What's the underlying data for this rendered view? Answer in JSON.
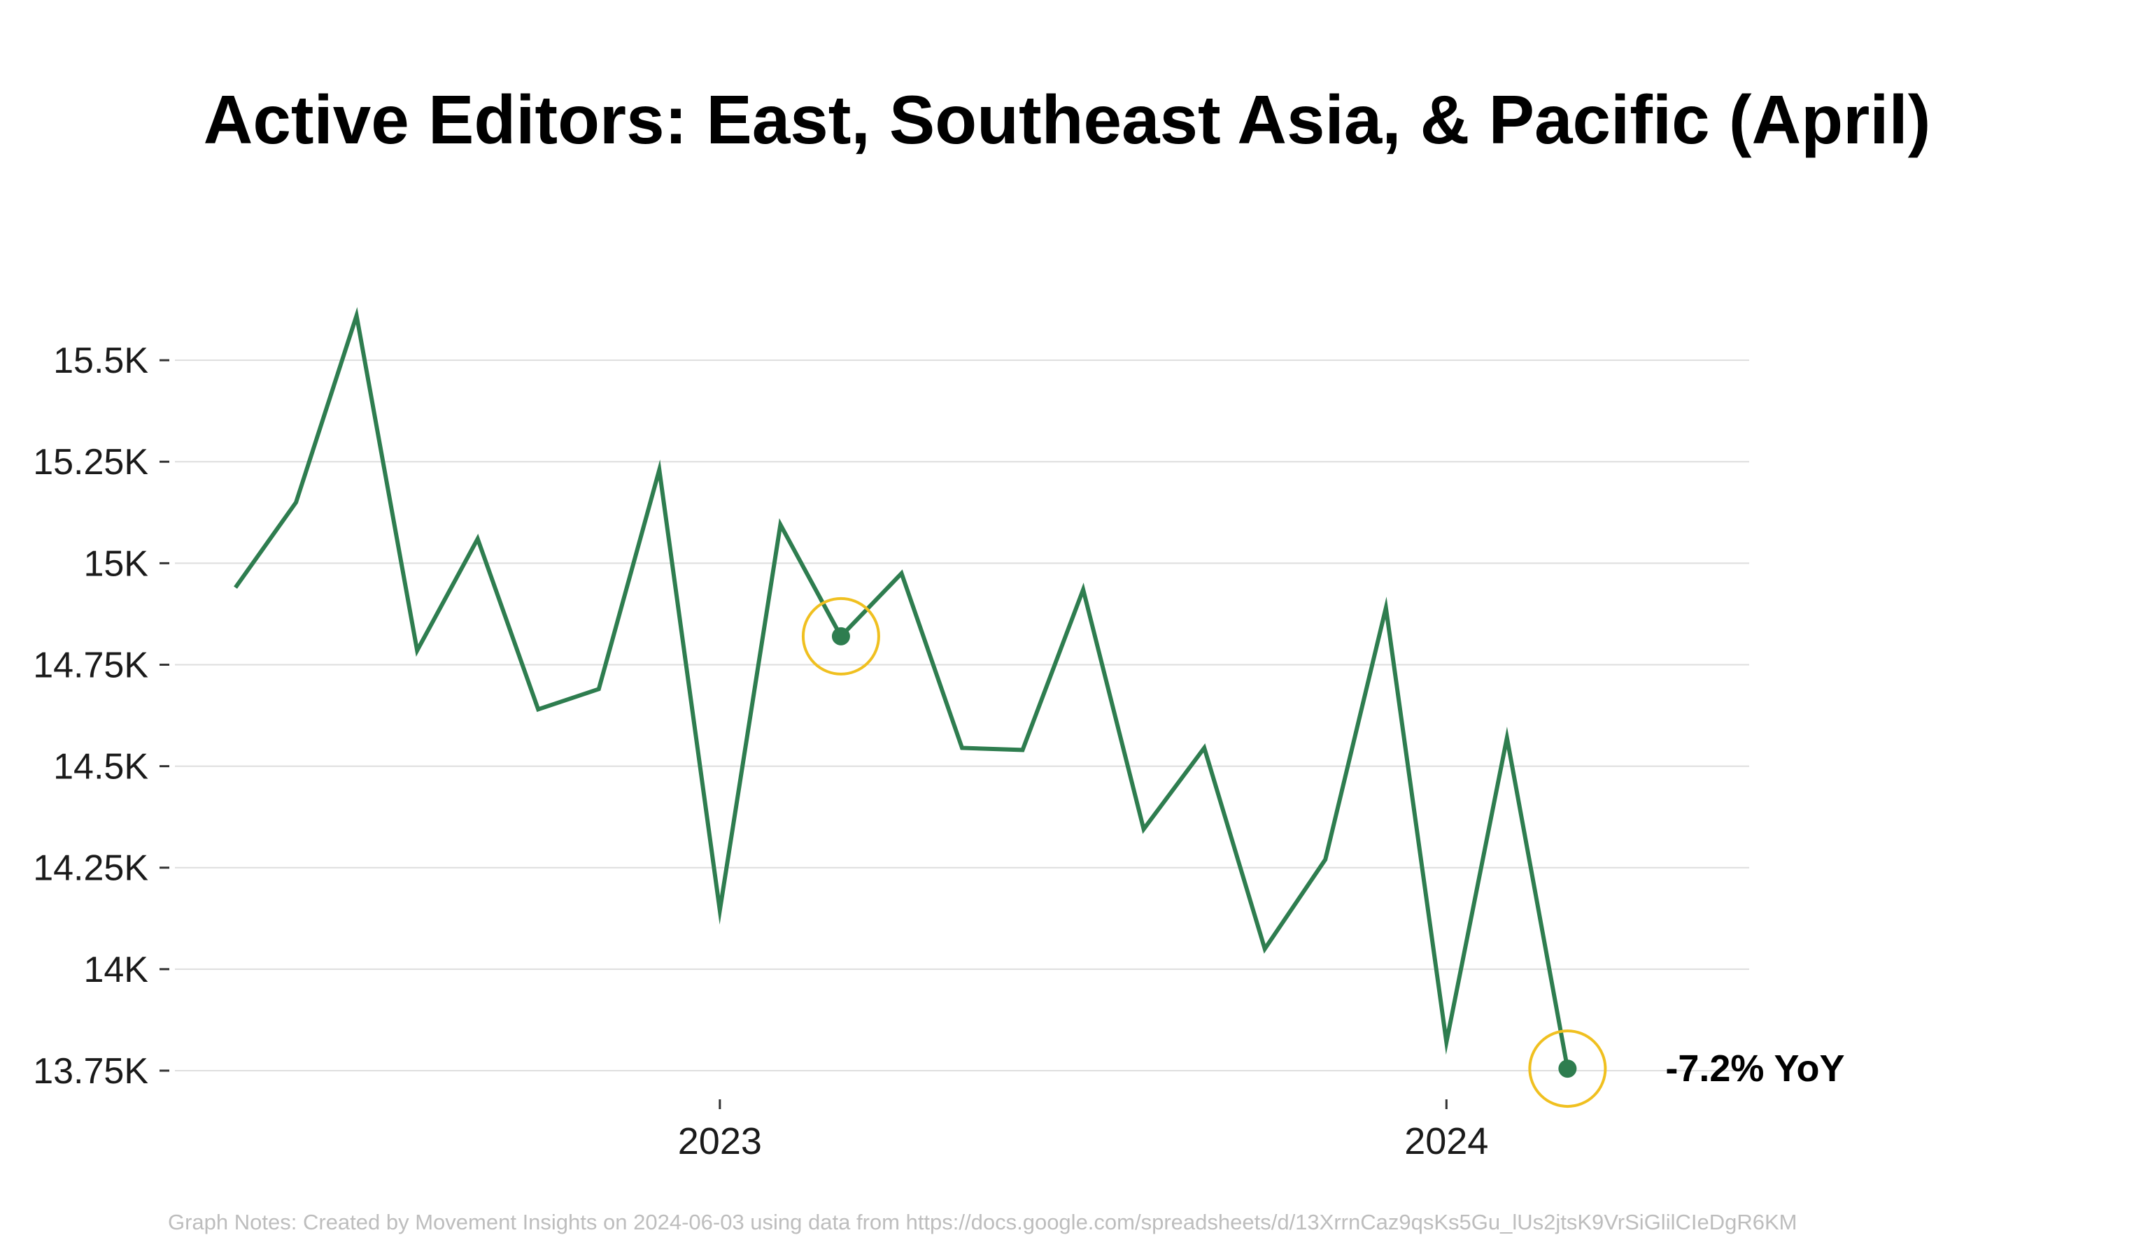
{
  "chart_data": {
    "type": "line",
    "title": "Active Editors: East, Southeast Asia, & Pacific (April)",
    "xlabel": "",
    "ylabel": "",
    "x_ticks": [
      {
        "label": "2023",
        "x": "2023-01"
      },
      {
        "label": "2024",
        "x": "2024-01"
      }
    ],
    "y_ticks": [
      {
        "value": 13750,
        "label": "13.75K"
      },
      {
        "value": 14000,
        "label": "14K"
      },
      {
        "value": 14250,
        "label": "14.25K"
      },
      {
        "value": 14500,
        "label": "14.5K"
      },
      {
        "value": 14750,
        "label": "14.75K"
      },
      {
        "value": 15000,
        "label": "15K"
      },
      {
        "value": 15250,
        "label": "15.25K"
      },
      {
        "value": 15500,
        "label": "15.5K"
      }
    ],
    "ylim": [
      13700,
      15750
    ],
    "xlim": [
      "2022-04",
      "2024-06"
    ],
    "grid": true,
    "series": [
      {
        "color": "#2e7d4f",
        "points": [
          {
            "x": "2022-05",
            "y": 14940
          },
          {
            "x": "2022-06",
            "y": 15150
          },
          {
            "x": "2022-07",
            "y": 15610
          },
          {
            "x": "2022-08",
            "y": 14785
          },
          {
            "x": "2022-09",
            "y": 15060
          },
          {
            "x": "2022-10",
            "y": 14640
          },
          {
            "x": "2022-11",
            "y": 14690
          },
          {
            "x": "2022-12",
            "y": 15230
          },
          {
            "x": "2023-01",
            "y": 14145
          },
          {
            "x": "2023-02",
            "y": 15095
          },
          {
            "x": "2023-03",
            "y": 14820
          },
          {
            "x": "2023-04",
            "y": 14975
          },
          {
            "x": "2023-05",
            "y": 14545
          },
          {
            "x": "2023-06",
            "y": 14540
          },
          {
            "x": "2023-07",
            "y": 14935
          },
          {
            "x": "2023-08",
            "y": 14345
          },
          {
            "x": "2023-09",
            "y": 14545
          },
          {
            "x": "2023-10",
            "y": 14050
          },
          {
            "x": "2023-11",
            "y": 14270
          },
          {
            "x": "2023-12",
            "y": 14890
          },
          {
            "x": "2024-01",
            "y": 13820
          },
          {
            "x": "2024-02",
            "y": 14570
          },
          {
            "x": "2024-03",
            "y": 13755
          }
        ]
      }
    ],
    "highlights": [
      {
        "x": "2023-03",
        "y": 14820,
        "ring_color": "#f0c020"
      },
      {
        "x": "2024-03",
        "y": 13755,
        "ring_color": "#f0c020"
      }
    ],
    "annotation": {
      "text": "-7.2% YoY",
      "x": "2024-03",
      "y": 13755
    },
    "notes": "Graph Notes: Created by Movement Insights on 2024-06-03 using data from https://docs.google.com/spreadsheets/d/13XrrnCaz9qsKs5Gu_lUs2jtsK9VrSiGlilCIeDgR6KM"
  }
}
